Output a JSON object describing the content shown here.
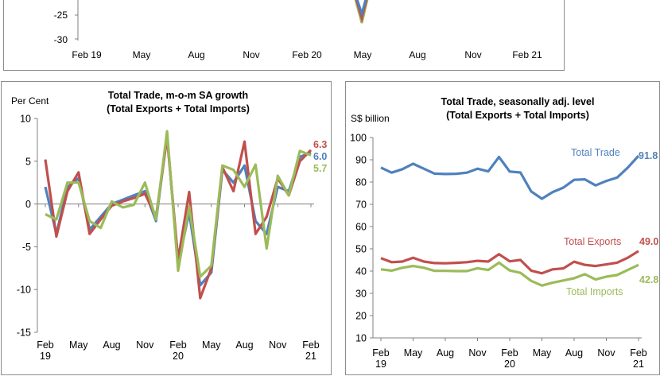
{
  "top_chart": {
    "yticks": [
      "-25",
      "-30"
    ],
    "xticks": [
      "Feb 19",
      "May",
      "Aug",
      "Nov",
      "Feb 20",
      "May",
      "Aug",
      "Nov",
      "Feb 21"
    ]
  },
  "chart_data": [
    {
      "type": "line",
      "title": "Total Trade, m-o-m SA growth",
      "subtitle": "(Total Exports + Total Imports)",
      "ylabel": "Per Cent",
      "ylim": [
        -15,
        10
      ],
      "yticks": [
        10,
        5,
        0,
        -5,
        -10,
        -15
      ],
      "xtick_labels": [
        [
          "Feb",
          "19"
        ],
        [
          "May",
          ""
        ],
        [
          "Aug",
          ""
        ],
        [
          "Nov",
          ""
        ],
        [
          "Feb",
          "20"
        ],
        [
          "May",
          ""
        ],
        [
          "Aug",
          ""
        ],
        [
          "Nov",
          ""
        ],
        [
          "Feb",
          "21"
        ]
      ],
      "x": [
        "Feb-19",
        "Mar-19",
        "Apr-19",
        "May-19",
        "Jun-19",
        "Jul-19",
        "Aug-19",
        "Sep-19",
        "Oct-19",
        "Nov-19",
        "Dec-19",
        "Jan-20",
        "Feb-20",
        "Mar-20",
        "Apr-20",
        "May-20",
        "Jun-20",
        "Jul-20",
        "Aug-20",
        "Sep-20",
        "Oct-20",
        "Nov-20",
        "Dec-20",
        "Jan-21",
        "Feb-21"
      ],
      "series": [
        {
          "color": "#4f81bd",
          "end_label": "6.0",
          "values": [
            2.0,
            -3.5,
            2.0,
            3.0,
            -3.0,
            -1.5,
            0.0,
            0.5,
            1.0,
            1.5,
            -2.0,
            8.0,
            -7.0,
            -1.0,
            -9.5,
            -8.0,
            4.0,
            2.5,
            4.5,
            -2.0,
            -3.5,
            2.0,
            1.5,
            5.5,
            6.0
          ]
        },
        {
          "color": "#c0504d",
          "end_label": "6.3",
          "values": [
            5.2,
            -3.8,
            1.5,
            3.7,
            -3.5,
            -1.8,
            -0.2,
            0.3,
            0.7,
            1.2,
            -1.5,
            7.8,
            -6.5,
            1.4,
            -11.0,
            -7.5,
            4.3,
            1.5,
            7.3,
            -3.5,
            -1.5,
            3.0,
            1.0,
            5.0,
            6.3
          ]
        },
        {
          "color": "#9bbb59",
          "end_label": "5.7",
          "values": [
            -1.2,
            -1.8,
            2.5,
            2.5,
            -2.0,
            -2.8,
            0.3,
            -0.4,
            -0.1,
            2.5,
            -1.8,
            8.5,
            -7.8,
            -0.3,
            -8.5,
            -7.2,
            4.5,
            4.0,
            2.0,
            4.6,
            -5.2,
            3.3,
            1.0,
            6.2,
            5.7
          ]
        }
      ]
    },
    {
      "type": "line",
      "title": "Total Trade, seasonally adj. level",
      "subtitle": "(Total Exports + Total Imports)",
      "ylabel": "S$ billion",
      "ylim": [
        10,
        100
      ],
      "yticks": [
        100,
        90,
        80,
        70,
        60,
        50,
        40,
        30,
        20,
        10
      ],
      "xtick_labels": [
        [
          "Feb",
          "19"
        ],
        [
          "May",
          ""
        ],
        [
          "Aug",
          ""
        ],
        [
          "Nov",
          ""
        ],
        [
          "Feb",
          "20"
        ],
        [
          "May",
          ""
        ],
        [
          "Aug",
          ""
        ],
        [
          "Nov",
          ""
        ],
        [
          "Feb",
          "21"
        ]
      ],
      "x": [
        "Feb-19",
        "Mar-19",
        "Apr-19",
        "May-19",
        "Jun-19",
        "Jul-19",
        "Aug-19",
        "Sep-19",
        "Oct-19",
        "Nov-19",
        "Dec-19",
        "Jan-20",
        "Feb-20",
        "Mar-20",
        "Apr-20",
        "May-20",
        "Jun-20",
        "Jul-20",
        "Aug-20",
        "Sep-20",
        "Oct-20",
        "Nov-20",
        "Dec-20",
        "Jan-21",
        "Feb-21"
      ],
      "series": [
        {
          "name": "Total Trade",
          "color": "#4f81bd",
          "end_label": "91.8",
          "values": [
            86.5,
            84.2,
            85.8,
            88.2,
            86.0,
            83.8,
            83.6,
            83.7,
            84.2,
            86.0,
            84.8,
            91.3,
            84.7,
            84.3,
            75.8,
            72.5,
            75.5,
            77.5,
            81.0,
            81.2,
            78.5,
            80.5,
            82.0,
            86.5,
            91.8
          ]
        },
        {
          "name": "Total Exports",
          "color": "#c0504d",
          "end_label": "49.0",
          "values": [
            45.8,
            44.0,
            44.3,
            46.0,
            44.3,
            43.6,
            43.5,
            43.7,
            44.0,
            44.6,
            44.3,
            47.6,
            44.4,
            45.0,
            40.2,
            39.0,
            40.8,
            41.2,
            44.2,
            42.8,
            42.3,
            43.0,
            43.8,
            46.0,
            49.0
          ]
        },
        {
          "name": "Total Imports",
          "color": "#9bbb59",
          "end_label": "42.8",
          "values": [
            40.8,
            40.2,
            41.5,
            42.3,
            41.5,
            40.1,
            40.1,
            40.0,
            40.0,
            41.3,
            40.5,
            43.8,
            40.3,
            39.2,
            35.6,
            33.5,
            34.8,
            35.8,
            36.8,
            38.6,
            36.2,
            37.5,
            38.2,
            40.5,
            42.8
          ]
        }
      ]
    }
  ]
}
